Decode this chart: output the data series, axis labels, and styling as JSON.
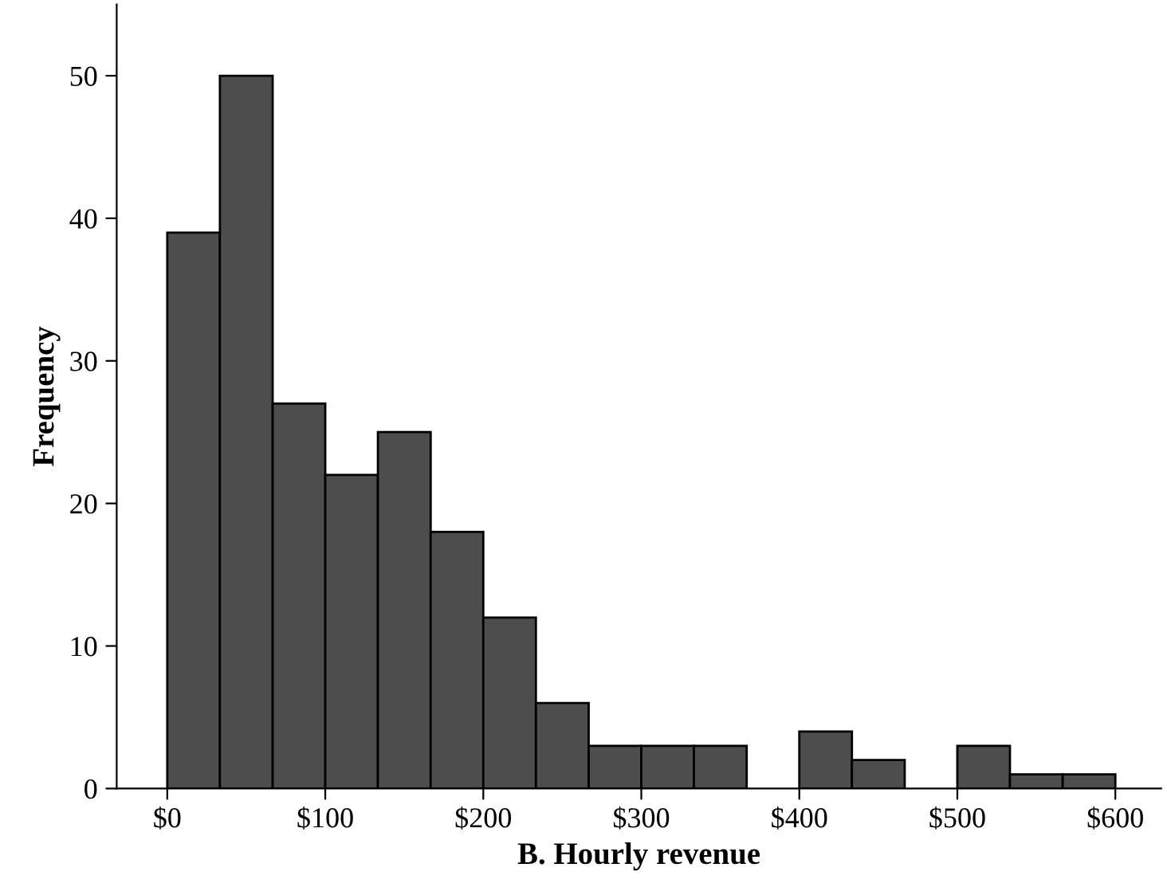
{
  "chart_data": {
    "type": "histogram",
    "xlabel": "B. Hourly revenue",
    "ylabel": "Frequency",
    "bins": [
      0,
      33.3,
      66.7,
      100,
      133.3,
      166.7,
      200,
      233.3,
      266.7,
      300,
      333.3,
      366.7,
      400,
      433.3,
      466.7,
      500,
      533.3,
      566.7,
      600
    ],
    "values": [
      39,
      50,
      27,
      22,
      25,
      18,
      12,
      6,
      3,
      3,
      3,
      0,
      4,
      2,
      0,
      3,
      1,
      1
    ],
    "color": "#4d4d4d",
    "xlim": [
      -32,
      629
    ],
    "ylim": [
      0,
      55
    ],
    "xticks": [
      {
        "value": 0,
        "label": "$0"
      },
      {
        "value": 100,
        "label": "$100"
      },
      {
        "value": 200,
        "label": "$200"
      },
      {
        "value": 300,
        "label": "$300"
      },
      {
        "value": 400,
        "label": "$400"
      },
      {
        "value": 500,
        "label": "$500"
      },
      {
        "value": 600,
        "label": "$600"
      }
    ],
    "yticks": [
      0,
      10,
      20,
      30,
      40,
      50
    ],
    "grid": false
  }
}
